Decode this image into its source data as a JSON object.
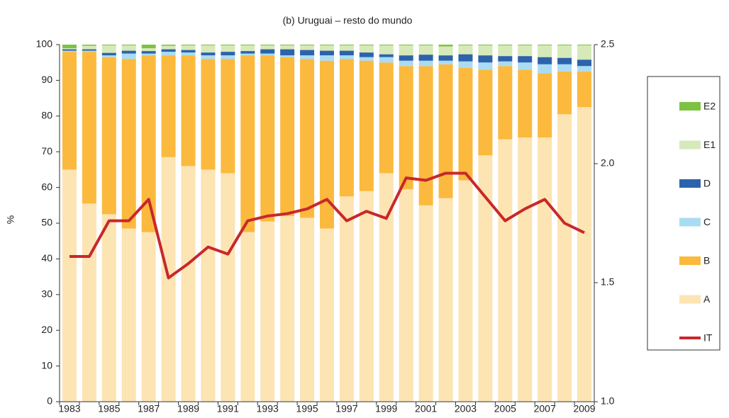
{
  "chart_data": {
    "type": "bar",
    "stacked": true,
    "title": "(b) Uruguai – resto do mundo",
    "y_label": "%",
    "categories": [
      "1983",
      null,
      "1985",
      null,
      "1987",
      null,
      "1989",
      null,
      "1991",
      null,
      "1993",
      null,
      "1995",
      null,
      "1997",
      null,
      "1999",
      null,
      "2001",
      null,
      "2003",
      null,
      "2005",
      null,
      "2007",
      null,
      "2009"
    ],
    "series": [
      {
        "name": "A",
        "color": "#fce4b3",
        "values": [
          65,
          55.5,
          52.5,
          48.5,
          47.5,
          68.5,
          66,
          65,
          64,
          47.5,
          50.5,
          52,
          51.5,
          48.5,
          57.5,
          59,
          64,
          59.5,
          55,
          57,
          62,
          69,
          73.5,
          74,
          74,
          80.5,
          82.5
        ]
      },
      {
        "name": "B",
        "color": "#fbb93e",
        "values": [
          33,
          42.5,
          44,
          47.5,
          49.5,
          28.5,
          31,
          31,
          32,
          49.5,
          46.5,
          44.5,
          44.5,
          47,
          38.5,
          36.5,
          31,
          34.5,
          39,
          37.5,
          31.5,
          24,
          20.5,
          19,
          18,
          12,
          10
        ]
      },
      {
        "name": "C",
        "color": "#a9dcf3",
        "values": [
          0.3,
          0.3,
          0.5,
          1.5,
          0.5,
          1,
          0.8,
          1,
          1,
          0.5,
          0.5,
          0.5,
          1,
          1.5,
          1,
          1,
          1.5,
          1.5,
          1.5,
          1,
          1.8,
          2,
          1.3,
          2,
          2.5,
          2,
          1.5
        ]
      },
      {
        "name": "D",
        "color": "#2d63ac",
        "values": [
          0.4,
          0.4,
          0.7,
          0.8,
          0.7,
          0.7,
          0.7,
          0.8,
          1,
          0.7,
          1.2,
          1.7,
          1.5,
          1.3,
          1.3,
          1.3,
          0.8,
          1.5,
          1.7,
          1.5,
          2,
          2,
          1.5,
          1.8,
          2,
          1.8,
          1.8
        ]
      },
      {
        "name": "E1",
        "color": "#d6e9b8",
        "values": [
          0.3,
          1,
          2.1,
          1.5,
          0.8,
          1,
          1.3,
          2,
          1.8,
          1.6,
          1.1,
          1.1,
          1.3,
          1.5,
          1.5,
          2,
          2.5,
          2.8,
          2.6,
          2.5,
          2.5,
          2.8,
          3,
          3,
          3.3,
          3.5,
          4
        ]
      },
      {
        "name": "E2",
        "color": "#7dc242",
        "values": [
          1,
          0.3,
          0.2,
          0.2,
          1,
          0.3,
          0.2,
          0.2,
          0.2,
          0.2,
          0.2,
          0.2,
          0.2,
          0.2,
          0.2,
          0.2,
          0.2,
          0.2,
          0.2,
          0.5,
          0.2,
          0.2,
          0.2,
          0.2,
          0.2,
          0.2,
          0.2
        ]
      },
      {
        "name": "IT",
        "color": "#c8282b",
        "type": "line",
        "axis": "y2",
        "values": [
          1.61,
          1.61,
          1.76,
          1.76,
          1.85,
          1.52,
          1.58,
          1.65,
          1.62,
          1.76,
          1.78,
          1.79,
          1.81,
          1.85,
          1.76,
          1.8,
          1.77,
          1.94,
          1.93,
          1.96,
          1.96,
          1.86,
          1.76,
          1.81,
          1.85,
          1.75,
          1.71
        ]
      }
    ],
    "ylim": [
      0,
      100
    ],
    "yticks": [
      0,
      10,
      20,
      30,
      40,
      50,
      60,
      70,
      80,
      90,
      100
    ],
    "y2lim": [
      1,
      2.5
    ],
    "y2ticks": [
      {
        "value": 1,
        "label": "1.0"
      },
      1.5,
      {
        "value": 2,
        "label": "2.0"
      },
      2.5
    ],
    "legend": "right",
    "grid": false
  }
}
